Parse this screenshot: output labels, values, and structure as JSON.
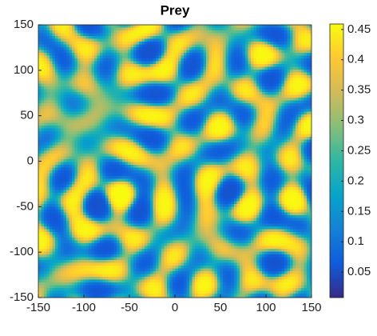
{
  "chart_data": {
    "type": "heatmap",
    "title": "Prey",
    "xlim": [
      -150,
      150
    ],
    "ylim": [
      -150,
      150
    ],
    "xticks": [
      -150,
      -100,
      -50,
      0,
      50,
      100,
      150
    ],
    "yticks": [
      -150,
      -100,
      -50,
      0,
      50,
      100,
      150
    ],
    "colormap": [
      "#352a87",
      "#0f5cdd",
      "#1481d6",
      "#06a4ca",
      "#2eb7a4",
      "#87bf77",
      "#d1bb59",
      "#fec832",
      "#f9fb0e"
    ],
    "colorbar": {
      "lim": [
        0.008,
        0.459
      ],
      "ticks": [
        0.05,
        0.1,
        0.15,
        0.2,
        0.25,
        0.3,
        0.35,
        0.4,
        0.45
      ]
    }
  }
}
